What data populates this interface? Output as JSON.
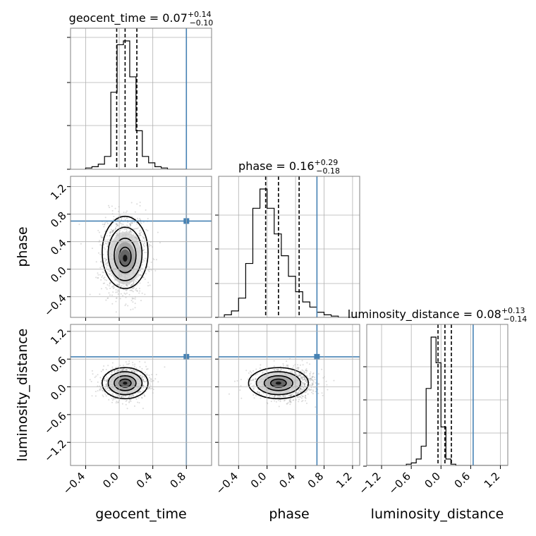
{
  "chart_data": {
    "type": "corner",
    "parameters": [
      {
        "name": "geocent_time",
        "title": {
          "prefix": "geocent_time = ",
          "value": "0.07",
          "plus": "+0.14",
          "minus": "−0.10"
        },
        "truth": 0.8,
        "quantiles": [
          -0.03,
          0.07,
          0.21
        ],
        "ticks": [
          -0.4,
          0.0,
          0.4,
          0.8
        ],
        "tick_labels": [
          "−0.4",
          "0.0",
          "0.4",
          "0.8"
        ],
        "hist": {
          "edges_start": -0.4,
          "bin_width": 0.075,
          "counts": [
            0.01,
            0.02,
            0.04,
            0.1,
            0.6,
            0.97,
            1.0,
            0.72,
            0.3,
            0.1,
            0.05,
            0.02,
            0.01,
            0.0,
            0.0,
            0.0
          ]
        }
      },
      {
        "name": "phase",
        "title": {
          "prefix": "phase = ",
          "value": "0.16",
          "plus": "+0.29",
          "minus": "−0.18"
        },
        "truth": 0.7,
        "quantiles": [
          -0.02,
          0.16,
          0.45
        ],
        "ticks": [
          -0.4,
          0.0,
          0.4,
          0.8,
          1.2
        ],
        "tick_labels": [
          "−0.4",
          "0.0",
          "0.4",
          "0.8",
          "1.2"
        ],
        "hist": {
          "edges_start": -0.7,
          "bin_width": 0.1,
          "counts": [
            0.0,
            0.02,
            0.05,
            0.15,
            0.42,
            0.85,
            1.0,
            0.85,
            0.65,
            0.48,
            0.32,
            0.2,
            0.12,
            0.08,
            0.04,
            0.02,
            0.01,
            0.0,
            0.0,
            0.0
          ]
        }
      },
      {
        "name": "luminosity_distance",
        "title": {
          "prefix": "luminosity_distance = ",
          "value": "0.08",
          "plus": "+0.13",
          "minus": "−0.14"
        },
        "truth": 0.65,
        "quantiles": [
          -0.06,
          0.08,
          0.21
        ],
        "ticks": [
          -1.2,
          -0.6,
          0.0,
          0.6,
          1.2
        ],
        "tick_labels": [
          "−1.2",
          "−0.6",
          "0.0",
          "0.6",
          "1.2"
        ],
        "hist": {
          "edges_start": -1.5,
          "bin_width": 0.1,
          "counts": [
            0.0,
            0.0,
            0.0,
            0.0,
            0.0,
            0.0,
            0.0,
            0.0,
            0.01,
            0.02,
            0.05,
            0.15,
            0.6,
            1.0,
            0.8,
            0.3,
            0.05,
            0.01,
            0.0,
            0.0,
            0.0,
            0.0,
            0.0,
            0.0,
            0.0,
            0.0,
            0.0,
            0.0,
            0.0,
            0.0
          ]
        }
      }
    ],
    "grid": true,
    "truth_color": "#4682b4",
    "contour_color": "#000000",
    "sample_color": "#999999"
  }
}
